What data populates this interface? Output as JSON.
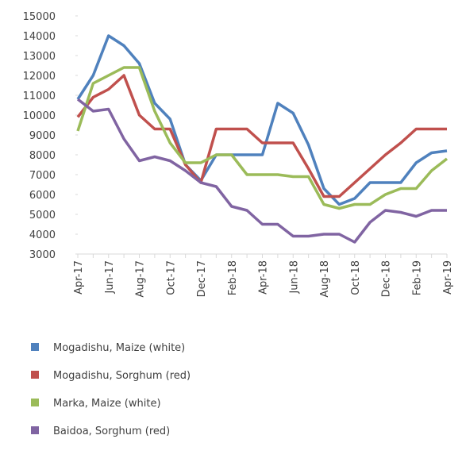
{
  "chart_data": {
    "type": "line",
    "categories": [
      "Apr-17",
      null,
      "Jun-17",
      null,
      "Aug-17",
      null,
      "Oct-17",
      null,
      "Dec-17",
      null,
      "Feb-18",
      null,
      "Apr-18",
      null,
      "Jun-18",
      null,
      "Aug-18",
      null,
      "Oct-18",
      null,
      "Dec-18",
      null,
      "Feb-19",
      null,
      "Apr-19"
    ],
    "ylim": [
      3000,
      15000
    ],
    "yticks": [
      3000,
      4000,
      5000,
      6000,
      7000,
      8000,
      9000,
      10000,
      11000,
      12000,
      13000,
      14000,
      15000
    ],
    "series": [
      {
        "name": "Mogadishu, Maize (white)",
        "color": "#4f81bd",
        "values": [
          10800,
          12000,
          14000,
          13500,
          12600,
          10600,
          9800,
          7500,
          6700,
          8000,
          8000,
          8000,
          8000,
          10600,
          10100,
          8500,
          6300,
          5500,
          5800,
          6600,
          6600,
          6600,
          7600,
          8100,
          8200
        ]
      },
      {
        "name": "Mogadishu, Sorghum (red)",
        "color": "#c0504d",
        "values": [
          9900,
          10900,
          11300,
          12000,
          10000,
          9300,
          9300,
          7500,
          6600,
          9300,
          9300,
          9300,
          8600,
          8600,
          8600,
          7300,
          5900,
          5900,
          6600,
          7300,
          8000,
          8600,
          9300,
          9300,
          9300
        ]
      },
      {
        "name": "Marka, Maize (white)",
        "color": "#9bbb59",
        "values": [
          9200,
          11600,
          12000,
          12400,
          12400,
          10200,
          8600,
          7600,
          7600,
          8000,
          8000,
          7000,
          7000,
          7000,
          6900,
          6900,
          5500,
          5300,
          5500,
          5500,
          6000,
          6300,
          6300,
          7200,
          7800
        ]
      },
      {
        "name": "Baidoa, Sorghum (red)",
        "color": "#8064a2",
        "values": [
          10800,
          10200,
          10300,
          8800,
          7700,
          7900,
          7700,
          7200,
          6600,
          6400,
          5400,
          5200,
          4500,
          4500,
          3900,
          3900,
          4000,
          4000,
          3600,
          4600,
          5200,
          5100,
          4900,
          5200,
          5200
        ]
      }
    ]
  }
}
